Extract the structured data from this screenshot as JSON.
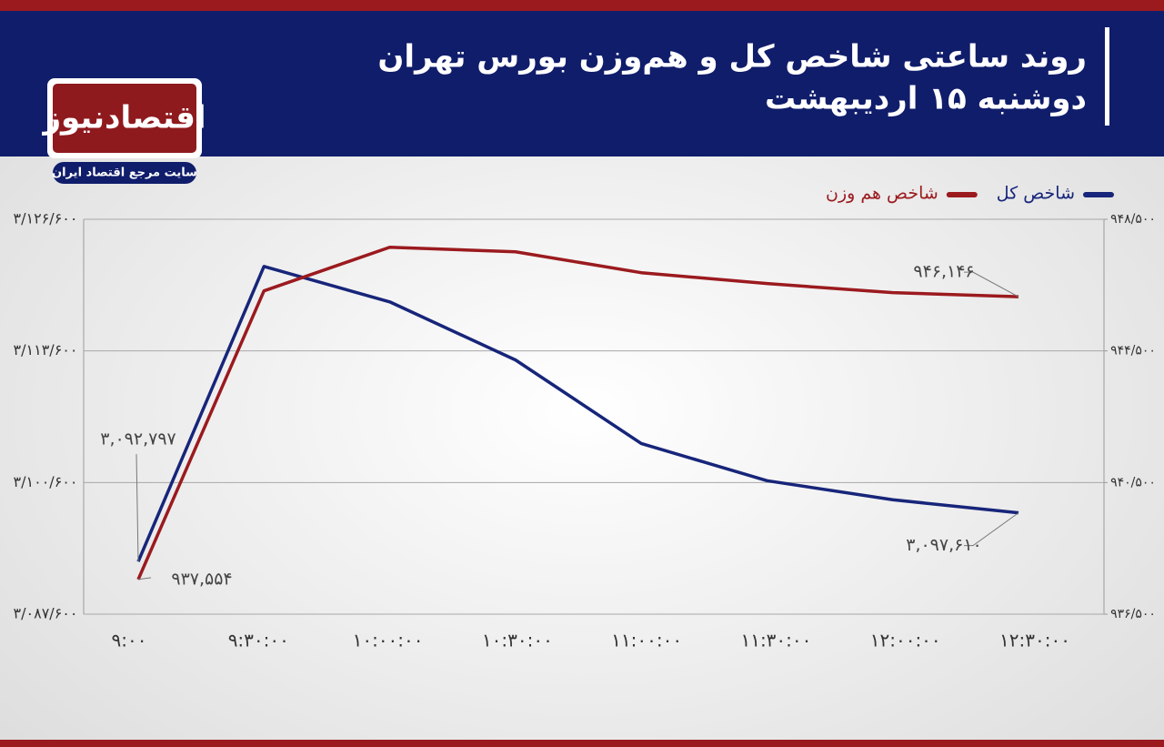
{
  "brand": {
    "name": "اقتصادنیوز",
    "tagline": "سایت مرجع اقتصاد ایران"
  },
  "chart_data": {
    "type": "line",
    "title": "روند ساعتی شاخص کل و هم‌وزن بورس تهران",
    "subtitle": "دوشنبه ۱۵ اردیبهشت",
    "categories": [
      "۹:۰۰",
      "۹:۳۰:۰۰",
      "۱۰:۰۰:۰۰",
      "۱۰:۳۰:۰۰",
      "۱۱:۰۰:۰۰",
      "۱۱:۳۰:۰۰",
      "۱۲:۰۰:۰۰",
      "۱۲:۳۰:۰۰"
    ],
    "series": [
      {
        "name": "شاخص کل",
        "color": "#17257a",
        "values": [
          3092797,
          3121940,
          3118443,
          3112705,
          3104456,
          3100780,
          3098897,
          3097610
        ],
        "value_labels": [
          "۳,۰۹۲,۷۹۷",
          null,
          null,
          null,
          null,
          null,
          null,
          "۳,۰۹۷,۶۱۰"
        ]
      },
      {
        "name": "شاخص هم وزن",
        "color": "#9b1a1e",
        "axis": "y2",
        "values": [
          937554,
          946325,
          947650,
          947512,
          946877,
          946546,
          946270,
          946146
        ],
        "value_labels": [
          "۹۳۷,۵۵۴",
          null,
          null,
          null,
          null,
          null,
          null,
          "۹۴۶,۱۴۶"
        ]
      }
    ],
    "ylim": [
      3087600,
      3126600
    ],
    "yticks": [
      {
        "value": 3087600,
        "label": "۳/۰۸۷/۶۰۰"
      },
      {
        "value": 3100600,
        "label": "۳/۱۰۰/۶۰۰"
      },
      {
        "value": 3113600,
        "label": "۳/۱۱۳/۶۰۰"
      },
      {
        "value": 3126600,
        "label": "۳/۱۲۶/۶۰۰"
      }
    ],
    "y2lim": [
      936500,
      948500
    ],
    "y2ticks": [
      {
        "value": 936500,
        "label": "۹۳۶/۵۰۰"
      },
      {
        "value": 940500,
        "label": "۹۴۰/۵۰۰"
      },
      {
        "value": 944500,
        "label": "۹۴۴/۵۰۰"
      },
      {
        "value": 948500,
        "label": "۹۴۸/۵۰۰"
      }
    ],
    "grid": true,
    "legend": "top-right"
  }
}
